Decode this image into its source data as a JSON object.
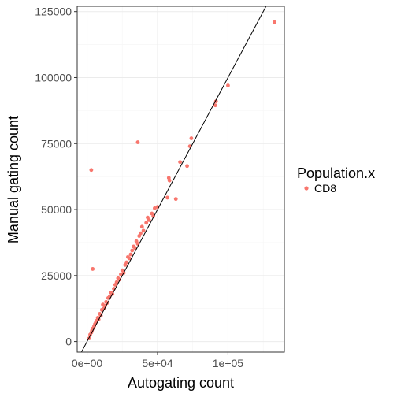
{
  "chart_data": {
    "type": "scatter",
    "title": "",
    "xlabel": "Autogating count",
    "ylabel": "Manual gating count",
    "xlim": [
      -7000,
      140000
    ],
    "ylim": [
      -4000,
      127000
    ],
    "x_ticks": [
      0,
      50000,
      100000
    ],
    "x_tick_labels": [
      "0e+00",
      "5e+04",
      "1e+05"
    ],
    "y_ticks": [
      0,
      25000,
      50000,
      75000,
      100000,
      125000
    ],
    "y_tick_labels": [
      "0",
      "25000",
      "50000",
      "75000",
      "100000",
      "125000"
    ],
    "grid": true,
    "legend": {
      "title": "Population.x",
      "position": "right",
      "entries": [
        "CD8"
      ]
    },
    "reference_line": {
      "slope": 1,
      "intercept": 0
    },
    "colors": {
      "CD8": "#F8766D",
      "reference_line": "#000000",
      "panel_border": "#333333",
      "grid_major": "#ebebeb",
      "grid_minor": "#f5f5f5"
    },
    "series": [
      {
        "name": "CD8",
        "points": [
          [
            1500,
            1200
          ],
          [
            2200,
            2600
          ],
          [
            3000,
            3400
          ],
          [
            3500,
            4200
          ],
          [
            4200,
            5000
          ],
          [
            5000,
            5800
          ],
          [
            5600,
            6600
          ],
          [
            6200,
            7200
          ],
          [
            7000,
            8000
          ],
          [
            7600,
            9000
          ],
          [
            8200,
            8400
          ],
          [
            9000,
            10500
          ],
          [
            9800,
            9800
          ],
          [
            10500,
            12000
          ],
          [
            11200,
            14000
          ],
          [
            12000,
            12600
          ],
          [
            12800,
            13500
          ],
          [
            13500,
            15000
          ],
          [
            14200,
            14600
          ],
          [
            15000,
            16500
          ],
          [
            16000,
            17000
          ],
          [
            17000,
            18500
          ],
          [
            18000,
            18000
          ],
          [
            19000,
            20000
          ],
          [
            20000,
            21500
          ],
          [
            21000,
            22500
          ],
          [
            22000,
            24000
          ],
          [
            23000,
            23500
          ],
          [
            24000,
            25500
          ],
          [
            25000,
            27000
          ],
          [
            26000,
            26000
          ],
          [
            27000,
            29000
          ],
          [
            28000,
            30000
          ],
          [
            29000,
            32000
          ],
          [
            30000,
            31500
          ],
          [
            31000,
            33000
          ],
          [
            32000,
            34500
          ],
          [
            33000,
            36000
          ],
          [
            34000,
            35500
          ],
          [
            35000,
            38000
          ],
          [
            36000,
            37000
          ],
          [
            37000,
            40000
          ],
          [
            38000,
            41000
          ],
          [
            39000,
            43500
          ],
          [
            40000,
            42000
          ],
          [
            42000,
            45000
          ],
          [
            43000,
            47000
          ],
          [
            44000,
            46000
          ],
          [
            46000,
            48500
          ],
          [
            47000,
            47500
          ],
          [
            48000,
            50500
          ],
          [
            50000,
            51000
          ],
          [
            36000,
            75500
          ],
          [
            3000,
            65000
          ],
          [
            4000,
            27500
          ],
          [
            57000,
            54500
          ],
          [
            58000,
            62000
          ],
          [
            58500,
            61000
          ],
          [
            63000,
            54000
          ],
          [
            66000,
            68000
          ],
          [
            71000,
            66500
          ],
          [
            73000,
            74000
          ],
          [
            74000,
            77000
          ],
          [
            91000,
            89500
          ],
          [
            91500,
            91000
          ],
          [
            100000,
            97000
          ],
          [
            133000,
            121000
          ]
        ]
      }
    ]
  }
}
